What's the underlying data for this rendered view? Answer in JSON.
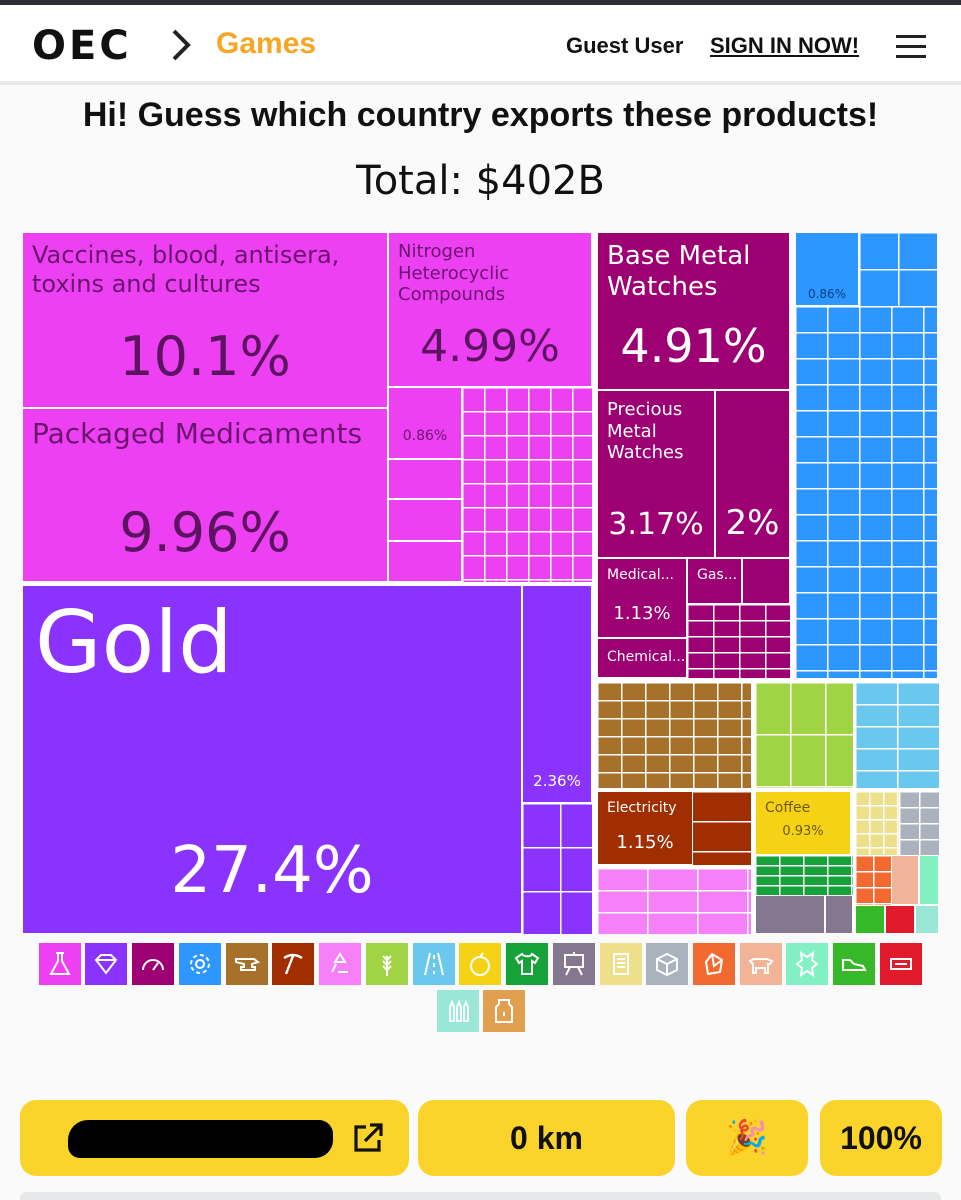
{
  "header": {
    "logo": "OEC",
    "breadcrumb": "Games",
    "user": "Guest User",
    "signin": "SIGN IN NOW!"
  },
  "page": {
    "title": "Hi! Guess which country exports these products!",
    "total": "Total: $402B"
  },
  "treemap": {
    "vaccines": {
      "name": "Vaccines, blood, antisera, toxins and cultures",
      "value": "10.1%"
    },
    "medicaments": {
      "name": "Packaged Medicaments",
      "value": "9.96%"
    },
    "nitrogen": {
      "name": "Nitrogen Heterocyclic Compounds",
      "value": "4.99%"
    },
    "chem_small": {
      "value": "0.86%"
    },
    "base_watches": {
      "name": "Base Metal Watches",
      "value": "4.91%"
    },
    "precious_watches": {
      "name": "Precious Metal Watches",
      "value": "3.17%"
    },
    "watches_other": {
      "value": "2%"
    },
    "medical": {
      "name": "Medical...",
      "value": "1.13%"
    },
    "gas": {
      "name": "Gas..."
    },
    "chemical": {
      "name": "Chemical..."
    },
    "machines_small": {
      "value": "0.86%"
    },
    "gold": {
      "name": "Gold",
      "value": "27.4%"
    },
    "gold_other": {
      "value": "2.36%"
    },
    "electricity": {
      "name": "Electricity",
      "value": "1.15%"
    },
    "coffee": {
      "name": "Coffee",
      "value": "0.93%"
    }
  },
  "colors": {
    "chemicals": "#ed40f2",
    "instruments": "#9c0072",
    "machines": "#2e97ff",
    "precious": "#8a33ff",
    "metals": "#a8712b",
    "minerals": "#a12e00",
    "vegetable": "#a0d445",
    "transport": "#6ac7ed",
    "foodstuffs": "#f5d216",
    "textiles": "#16a139",
    "misc": "#85778f",
    "paper": "#eee08a",
    "stone": "#f0b49a",
    "plastics": "#f26a30",
    "footwear": "#36b828",
    "animal": "#f2b396",
    "hides": "#82f0c2",
    "arms": "#9ae7d7",
    "wood": "#e0a050",
    "accent": "#fbd42b"
  },
  "legend": [
    {
      "icon": "flask-icon",
      "color": "#ed40f2"
    },
    {
      "icon": "diamond-icon",
      "color": "#8a33ff"
    },
    {
      "icon": "gauge-icon",
      "color": "#9c0072"
    },
    {
      "icon": "gear-icon",
      "color": "#2e97ff"
    },
    {
      "icon": "anvil-icon",
      "color": "#a8712b"
    },
    {
      "icon": "pickaxe-icon",
      "color": "#a12e00"
    },
    {
      "icon": "recycle-icon",
      "color": "#f580f7"
    },
    {
      "icon": "wheat-icon",
      "color": "#a0d445"
    },
    {
      "icon": "road-icon",
      "color": "#6ac7ed"
    },
    {
      "icon": "fruit-icon",
      "color": "#f5d216"
    },
    {
      "icon": "shirt-icon",
      "color": "#16a139"
    },
    {
      "icon": "easel-icon",
      "color": "#85778f"
    },
    {
      "icon": "scroll-icon",
      "color": "#eee08a"
    },
    {
      "icon": "box-icon",
      "color": "#aab2bd"
    },
    {
      "icon": "gem-icon",
      "color": "#f26a30"
    },
    {
      "icon": "cow-icon",
      "color": "#f2b396"
    },
    {
      "icon": "hide-icon",
      "color": "#82f0c2"
    },
    {
      "icon": "shoe-icon",
      "color": "#36b828"
    },
    {
      "icon": "textile-roll-icon",
      "color": "#e0192b"
    },
    {
      "icon": "ammo-icon",
      "color": "#9ae7d7"
    },
    {
      "icon": "carton-icon",
      "color": "#e0a050"
    }
  ],
  "footer": {
    "distance": "0 km",
    "party_icon": "🎉",
    "percent": "100%"
  }
}
